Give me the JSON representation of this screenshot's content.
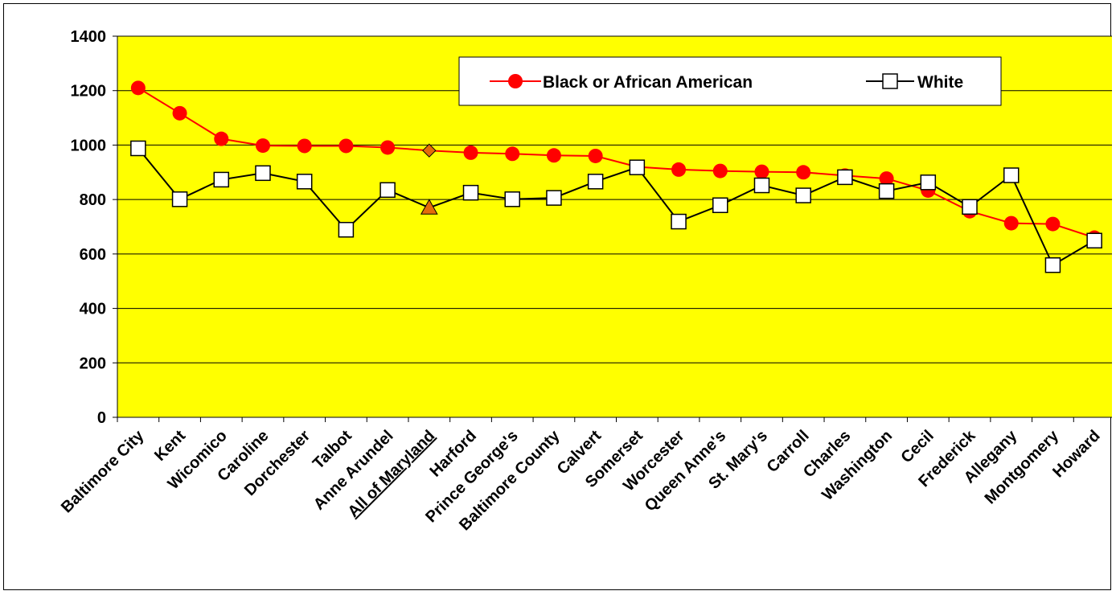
{
  "chart_data": {
    "type": "line",
    "title": "",
    "xlabel": "",
    "ylabel": "",
    "ylim": [
      0,
      1400
    ],
    "yticks": [
      0,
      200,
      400,
      600,
      800,
      1000,
      1200,
      1400
    ],
    "grid": "horizontal",
    "plot_background": "#FFFF00",
    "legend_position": "top-right",
    "categories": [
      "Baltimore City",
      "Kent",
      "Wicomico",
      "Caroline",
      "Dorchester",
      "Talbot",
      "Anne Arundel",
      "All of Maryland",
      "Harford",
      "Prince George's",
      "Baltimore County",
      "Calvert",
      "Somerset",
      "Worcester",
      "Queen Anne's",
      "St. Mary's",
      "Carroll",
      "Charles",
      "Washington",
      "Cecil",
      "Frederick",
      "Allegany",
      "Montgomery",
      "Howard"
    ],
    "highlight_category": "All of Maryland",
    "series": [
      {
        "name": "Black or African American",
        "color": "#FF0000",
        "marker": "circle",
        "highlight_marker": "diamond",
        "highlight_color": "#E46C0A",
        "values": [
          1210,
          1117,
          1023,
          998,
          997,
          997,
          991,
          980,
          972,
          968,
          962,
          960,
          920,
          910,
          905,
          902,
          900,
          888,
          877,
          833,
          757,
          713,
          710,
          660
        ]
      },
      {
        "name": "White",
        "color": "#000000",
        "marker": "square",
        "highlight_marker": "triangle",
        "highlight_color": "#E46C0A",
        "values": [
          988,
          801,
          873,
          897,
          866,
          689,
          835,
          770,
          825,
          801,
          806,
          866,
          918,
          719,
          779,
          852,
          815,
          882,
          831,
          863,
          773,
          889,
          559,
          649
        ]
      }
    ]
  }
}
